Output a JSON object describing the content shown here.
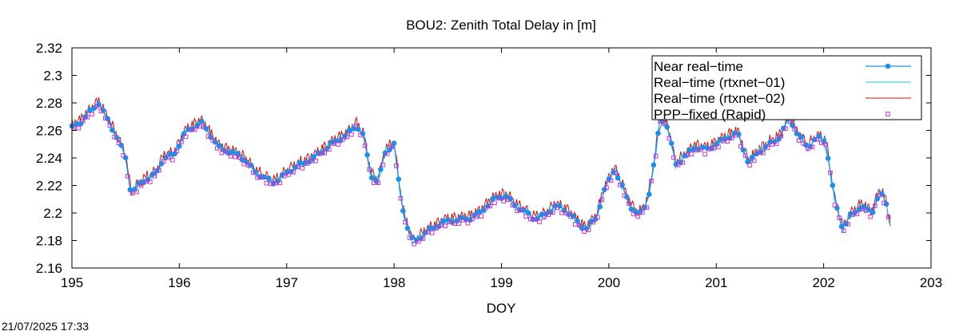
{
  "footer": {
    "timestamp": "21/07/2025 17:33"
  },
  "chart_data": {
    "type": "line",
    "title": "BOU2: Zenith Total Delay in [m]",
    "xlabel": "DOY",
    "ylabel": "",
    "xlim": [
      195,
      203
    ],
    "ylim": [
      2.16,
      2.32
    ],
    "x_ticks": [
      195,
      196,
      197,
      198,
      199,
      200,
      201,
      202,
      203
    ],
    "y_ticks": [
      2.16,
      2.18,
      2.2,
      2.22,
      2.24,
      2.26,
      2.28,
      2.3,
      2.32
    ],
    "x_tick_labels": [
      "195",
      "196",
      "197",
      "198",
      "199",
      "200",
      "201",
      "202",
      "203"
    ],
    "y_tick_labels": [
      "2.16",
      "2.18",
      "2.2",
      "2.22",
      "2.24",
      "2.26",
      "2.28",
      "2.3",
      "2.32"
    ],
    "grid": false,
    "legend": {
      "position": "top-right"
    },
    "colors": {
      "nrt": "#1e8fe8",
      "rt01": "#10c8d8",
      "rt02": "#cc1010",
      "ppp": "#cc33cc"
    },
    "anchors": [
      [
        195.0,
        2.262
      ],
      [
        195.08,
        2.266
      ],
      [
        195.15,
        2.272
      ],
      [
        195.25,
        2.28
      ],
      [
        195.33,
        2.268
      ],
      [
        195.42,
        2.255
      ],
      [
        195.5,
        2.24
      ],
      [
        195.55,
        2.214
      ],
      [
        195.62,
        2.22
      ],
      [
        195.7,
        2.225
      ],
      [
        195.78,
        2.228
      ],
      [
        195.85,
        2.24
      ],
      [
        195.95,
        2.242
      ],
      [
        196.05,
        2.258
      ],
      [
        196.12,
        2.262
      ],
      [
        196.2,
        2.266
      ],
      [
        196.28,
        2.258
      ],
      [
        196.36,
        2.248
      ],
      [
        196.45,
        2.245
      ],
      [
        196.55,
        2.242
      ],
      [
        196.62,
        2.238
      ],
      [
        196.7,
        2.23
      ],
      [
        196.78,
        2.226
      ],
      [
        196.88,
        2.222
      ],
      [
        196.95,
        2.226
      ],
      [
        197.05,
        2.232
      ],
      [
        197.15,
        2.236
      ],
      [
        197.25,
        2.24
      ],
      [
        197.35,
        2.246
      ],
      [
        197.45,
        2.252
      ],
      [
        197.55,
        2.256
      ],
      [
        197.65,
        2.264
      ],
      [
        197.72,
        2.255
      ],
      [
        197.78,
        2.228
      ],
      [
        197.85,
        2.222
      ],
      [
        197.92,
        2.245
      ],
      [
        198.0,
        2.25
      ],
      [
        198.05,
        2.218
      ],
      [
        198.1,
        2.195
      ],
      [
        198.18,
        2.178
      ],
      [
        198.28,
        2.185
      ],
      [
        198.38,
        2.19
      ],
      [
        198.48,
        2.194
      ],
      [
        198.6,
        2.195
      ],
      [
        198.7,
        2.196
      ],
      [
        198.8,
        2.2
      ],
      [
        198.9,
        2.208
      ],
      [
        198.98,
        2.212
      ],
      [
        199.05,
        2.212
      ],
      [
        199.12,
        2.206
      ],
      [
        199.2,
        2.202
      ],
      [
        199.3,
        2.196
      ],
      [
        199.4,
        2.198
      ],
      [
        199.5,
        2.205
      ],
      [
        199.6,
        2.202
      ],
      [
        199.7,
        2.194
      ],
      [
        199.78,
        2.188
      ],
      [
        199.88,
        2.196
      ],
      [
        199.95,
        2.215
      ],
      [
        200.05,
        2.232
      ],
      [
        200.12,
        2.22
      ],
      [
        200.2,
        2.205
      ],
      [
        200.28,
        2.198
      ],
      [
        200.36,
        2.208
      ],
      [
        200.43,
        2.24
      ],
      [
        200.48,
        2.27
      ],
      [
        200.55,
        2.262
      ],
      [
        200.62,
        2.235
      ],
      [
        200.72,
        2.242
      ],
      [
        200.8,
        2.248
      ],
      [
        200.9,
        2.246
      ],
      [
        201.0,
        2.25
      ],
      [
        201.1,
        2.255
      ],
      [
        201.2,
        2.258
      ],
      [
        201.3,
        2.236
      ],
      [
        201.4,
        2.245
      ],
      [
        201.5,
        2.25
      ],
      [
        201.6,
        2.256
      ],
      [
        201.68,
        2.27
      ],
      [
        201.75,
        2.258
      ],
      [
        201.85,
        2.248
      ],
      [
        201.95,
        2.255
      ],
      [
        202.02,
        2.252
      ],
      [
        202.1,
        2.21
      ],
      [
        202.18,
        2.188
      ],
      [
        202.25,
        2.198
      ],
      [
        202.35,
        2.205
      ],
      [
        202.45,
        2.2
      ],
      [
        202.52,
        2.215
      ],
      [
        202.58,
        2.208
      ],
      [
        202.62,
        2.19
      ]
    ],
    "series": [
      {
        "name": "Near real−time",
        "style": "line-points",
        "color": "#1e8fe8",
        "x_range": [
          195.0,
          202.62
        ]
      },
      {
        "name": "Real−time (rtxnet−01)",
        "style": "line",
        "color": "#10c8d8",
        "x_range": [
          195.0,
          202.62
        ]
      },
      {
        "name": "Real−time (rtxnet−02)",
        "style": "line",
        "color": "#cc1010",
        "x_range": [
          195.0,
          202.62
        ]
      },
      {
        "name": "PPP−fixed (Rapid)",
        "style": "square-points",
        "color": "#cc33cc",
        "x_range": [
          195.0,
          202.62
        ]
      }
    ]
  }
}
